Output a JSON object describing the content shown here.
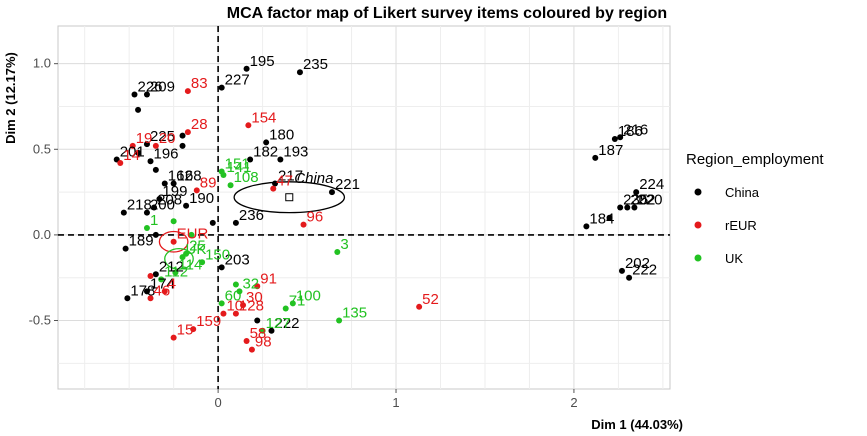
{
  "chart_data": {
    "type": "scatter",
    "title": "MCA factor map of Likert survey items coloured by region",
    "xlabel": "Dim 1 (44.03%)",
    "ylabel": "Dim 2 (12.17%)",
    "xlim": [
      -0.9,
      2.54
    ],
    "ylim": [
      -0.9,
      1.22
    ],
    "x_ticks": [
      "0",
      "1",
      "2"
    ],
    "x_tick_values": [
      0,
      1,
      2
    ],
    "y_ticks": [
      "1.0",
      "0.5",
      "0.0",
      "-0.5"
    ],
    "y_tick_values": [
      1.0,
      0.5,
      0.0,
      -0.5
    ],
    "grid": true,
    "reference_lines": {
      "x": 0,
      "y": 0,
      "style": "dashed"
    },
    "legend": {
      "title": "Region_employment",
      "position": "right",
      "entries": [
        {
          "name": "China",
          "color": "#000000"
        },
        {
          "name": "rEUR",
          "color": "#e41a1c"
        },
        {
          "name": "UK",
          "color": "#22c222"
        }
      ]
    },
    "series": [
      {
        "name": "China",
        "color": "#000000",
        "points": [
          {
            "x": 0.16,
            "y": 0.97,
            "label": "195"
          },
          {
            "x": 0.46,
            "y": 0.95,
            "label": "235"
          },
          {
            "x": 0.02,
            "y": 0.86,
            "label": "227"
          },
          {
            "x": -0.4,
            "y": 0.82,
            "label": "209"
          },
          {
            "x": -0.47,
            "y": 0.82,
            "label": "226"
          },
          {
            "x": -0.45,
            "y": 0.73,
            "label": ""
          },
          {
            "x": 0.27,
            "y": 0.54,
            "label": "180"
          },
          {
            "x": 0.35,
            "y": 0.44,
            "label": "193"
          },
          {
            "x": -0.4,
            "y": 0.53,
            "label": "225"
          },
          {
            "x": -0.2,
            "y": 0.58,
            "label": ""
          },
          {
            "x": -0.2,
            "y": 0.52,
            "label": ""
          },
          {
            "x": 0.18,
            "y": 0.44,
            "label": "182"
          },
          {
            "x": -0.38,
            "y": 0.43,
            "label": "196"
          },
          {
            "x": -0.57,
            "y": 0.44,
            "label": "201"
          },
          {
            "x": -0.45,
            "y": 0.48,
            "label": ""
          },
          {
            "x": -0.35,
            "y": 0.38,
            "label": ""
          },
          {
            "x": -0.3,
            "y": 0.3,
            "label": "162"
          },
          {
            "x": -0.25,
            "y": 0.3,
            "label": "168"
          },
          {
            "x": 0.32,
            "y": 0.3,
            "label": "217"
          },
          {
            "x": 0.64,
            "y": 0.25,
            "label": "221"
          },
          {
            "x": 0.1,
            "y": 0.07,
            "label": "236"
          },
          {
            "x": -0.18,
            "y": 0.17,
            "label": "190"
          },
          {
            "x": -0.33,
            "y": 0.21,
            "label": "199"
          },
          {
            "x": -0.36,
            "y": 0.16,
            "label": "208"
          },
          {
            "x": -0.4,
            "y": 0.13,
            "label": "200"
          },
          {
            "x": -0.53,
            "y": 0.13,
            "label": "218"
          },
          {
            "x": -0.03,
            "y": 0.07,
            "label": ""
          },
          {
            "x": -0.35,
            "y": 0.0,
            "label": ""
          },
          {
            "x": -0.52,
            "y": -0.08,
            "label": "189"
          },
          {
            "x": 0.02,
            "y": -0.19,
            "label": "203"
          },
          {
            "x": -0.35,
            "y": -0.23,
            "label": "212"
          },
          {
            "x": -0.4,
            "y": -0.33,
            "label": "174"
          },
          {
            "x": -0.51,
            "y": -0.37,
            "label": "178"
          },
          {
            "x": 0.3,
            "y": -0.56,
            "label": "222"
          },
          {
            "x": 0.22,
            "y": -0.5,
            "label": ""
          },
          {
            "x": 2.12,
            "y": 0.45,
            "label": "187"
          },
          {
            "x": 2.23,
            "y": 0.56,
            "label": "186"
          },
          {
            "x": 2.26,
            "y": 0.57,
            "label": "216"
          },
          {
            "x": 2.35,
            "y": 0.25,
            "label": "224"
          },
          {
            "x": 2.26,
            "y": 0.16,
            "label": "235"
          },
          {
            "x": 2.3,
            "y": 0.16,
            "label": "202"
          },
          {
            "x": 2.34,
            "y": 0.16,
            "label": "220"
          },
          {
            "x": 2.07,
            "y": 0.05,
            "label": "184"
          },
          {
            "x": 2.2,
            "y": 0.1,
            "label": ""
          },
          {
            "x": 2.27,
            "y": -0.21,
            "label": "202"
          },
          {
            "x": 2.31,
            "y": -0.25,
            "label": "222"
          }
        ]
      },
      {
        "name": "rEUR",
        "color": "#e41a1c",
        "points": [
          {
            "x": -0.17,
            "y": 0.84,
            "label": "83"
          },
          {
            "x": 0.17,
            "y": 0.64,
            "label": "154"
          },
          {
            "x": -0.17,
            "y": 0.6,
            "label": "28"
          },
          {
            "x": -0.48,
            "y": 0.52,
            "label": "19"
          },
          {
            "x": -0.35,
            "y": 0.52,
            "label": "20"
          },
          {
            "x": -0.55,
            "y": 0.42,
            "label": "14"
          },
          {
            "x": -0.12,
            "y": 0.26,
            "label": "89"
          },
          {
            "x": 0.31,
            "y": 0.27,
            "label": "47"
          },
          {
            "x": 0.48,
            "y": 0.06,
            "label": "96"
          },
          {
            "x": -0.25,
            "y": -0.04,
            "label": "EUR"
          },
          {
            "x": -0.38,
            "y": -0.24,
            "label": ""
          },
          {
            "x": -0.3,
            "y": -0.33,
            "label": "4"
          },
          {
            "x": -0.38,
            "y": -0.37,
            "label": "46"
          },
          {
            "x": 0.22,
            "y": -0.3,
            "label": "91"
          },
          {
            "x": 0.14,
            "y": -0.41,
            "label": "30"
          },
          {
            "x": 0.1,
            "y": -0.46,
            "label": "128"
          },
          {
            "x": 0.03,
            "y": -0.46,
            "label": "10"
          },
          {
            "x": 1.13,
            "y": -0.42,
            "label": "52"
          },
          {
            "x": -0.14,
            "y": -0.55,
            "label": "159"
          },
          {
            "x": -0.25,
            "y": -0.6,
            "label": "15"
          },
          {
            "x": 0.16,
            "y": -0.62,
            "label": "58"
          },
          {
            "x": 0.19,
            "y": -0.67,
            "label": "98"
          }
        ]
      },
      {
        "name": "UK",
        "color": "#22c222",
        "points": [
          {
            "x": 0.02,
            "y": 0.37,
            "label": "151"
          },
          {
            "x": 0.03,
            "y": 0.35,
            "label": "141"
          },
          {
            "x": 0.07,
            "y": 0.29,
            "label": "108"
          },
          {
            "x": -0.4,
            "y": 0.04,
            "label": "1"
          },
          {
            "x": -0.25,
            "y": 0.08,
            "label": ""
          },
          {
            "x": -0.15,
            "y": 0.0,
            "label": ""
          },
          {
            "x": -0.2,
            "y": -0.13,
            "label": "UK"
          },
          {
            "x": -0.18,
            "y": -0.11,
            "label": "25"
          },
          {
            "x": -0.09,
            "y": -0.16,
            "label": "150"
          },
          {
            "x": -0.24,
            "y": -0.22,
            "label": "114"
          },
          {
            "x": -0.32,
            "y": -0.26,
            "label": "112"
          },
          {
            "x": 0.67,
            "y": -0.1,
            "label": "3"
          },
          {
            "x": 0.1,
            "y": -0.29,
            "label": ""
          },
          {
            "x": 0.12,
            "y": -0.33,
            "label": "32"
          },
          {
            "x": 0.02,
            "y": -0.4,
            "label": "60"
          },
          {
            "x": 0.38,
            "y": -0.43,
            "label": "71"
          },
          {
            "x": 0.42,
            "y": -0.4,
            "label": "100"
          },
          {
            "x": 0.68,
            "y": -0.5,
            "label": "135"
          },
          {
            "x": 0.25,
            "y": -0.56,
            "label": "127"
          }
        ]
      }
    ],
    "supplementary_points": [
      {
        "x": 0.4,
        "y": 0.22,
        "label": "China",
        "marker": "square-open"
      }
    ],
    "ellipses": [
      {
        "group": "China",
        "cx": 0.4,
        "cy": 0.22,
        "rx": 0.31,
        "ry": 0.09,
        "color": "#000000"
      },
      {
        "group": "rEUR",
        "cx": -0.25,
        "cy": -0.04,
        "rx": 0.08,
        "ry": 0.06,
        "color": "#e41a1c"
      },
      {
        "group": "UK",
        "cx": -0.22,
        "cy": -0.14,
        "rx": 0.08,
        "ry": 0.06,
        "color": "#22c222"
      }
    ]
  }
}
